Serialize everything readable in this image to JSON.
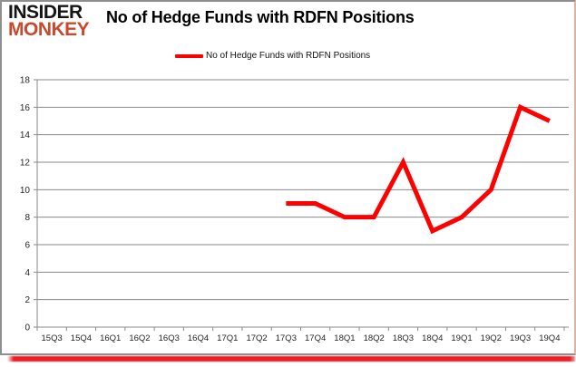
{
  "brand": {
    "line1": "INSIDER",
    "line2": "MONKEY"
  },
  "header": {
    "title": "No of Hedge Funds with RDFN Positions"
  },
  "legend": {
    "label": "No of Hedge Funds with RDFN Positions"
  },
  "chart_data": {
    "type": "line",
    "title": "No of Hedge Funds with RDFN Positions",
    "xlabel": "",
    "ylabel": "",
    "categories": [
      "15Q3",
      "15Q4",
      "16Q1",
      "16Q2",
      "16Q3",
      "16Q4",
      "17Q1",
      "17Q2",
      "17Q3",
      "17Q4",
      "18Q1",
      "18Q2",
      "18Q3",
      "18Q4",
      "19Q1",
      "19Q2",
      "19Q3",
      "19Q4"
    ],
    "series": [
      {
        "name": "No of Hedge Funds with RDFN Positions",
        "color": "#fe0000",
        "values": [
          null,
          null,
          null,
          null,
          null,
          null,
          null,
          null,
          9,
          9,
          8,
          8,
          12,
          7,
          8,
          10,
          16,
          15
        ]
      }
    ],
    "ylim": [
      0,
      18
    ],
    "ytick_step": 2,
    "grid": true,
    "legend_position": "top-center"
  },
  "colors": {
    "line": "#fe0000",
    "grid": "#8a8a8a",
    "axis_text": "#262626",
    "title_text": "#000000",
    "brand_insider": "#151515",
    "brand_monkey": "#c7492e",
    "accent_bar": "#ee1c23",
    "border_gray": "#8f8f8f",
    "border_right_pink": "#e8aca0"
  }
}
